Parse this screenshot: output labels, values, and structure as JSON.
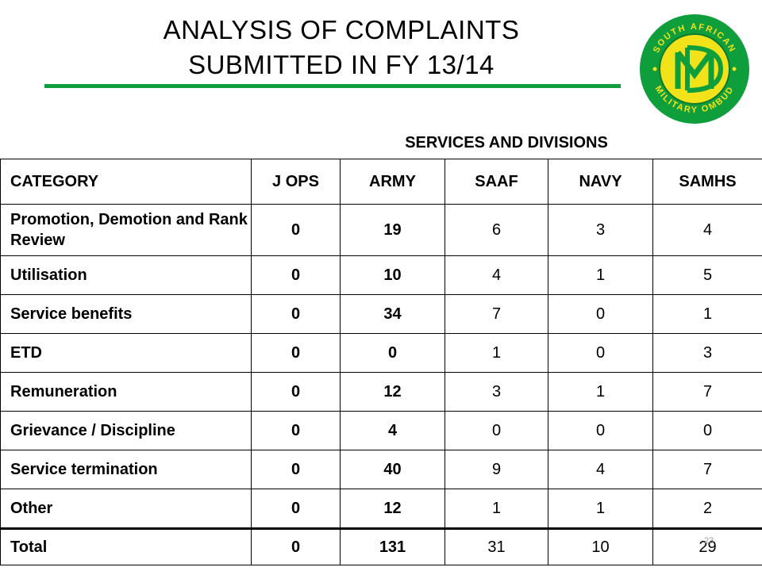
{
  "slide": {
    "title_line1": "ANALYSIS OF COMPLAINTS",
    "title_line2": "SUBMITTED IN FY 13/14",
    "page_number": "23"
  },
  "logo": {
    "top_text": "SOUTH AFRICAN",
    "bottom_text": "MILITARY OMBUD",
    "icon": "military-ombud-emblem",
    "colors": {
      "ring": "#0f9e3c",
      "inner": "#f2e21a",
      "letters": "#0f9e3c"
    }
  },
  "table": {
    "group_header": "SERVICES AND DIVISIONS",
    "columns": [
      "CATEGORY",
      "J OPS",
      "ARMY",
      "SAAF",
      "NAVY",
      "SAMHS"
    ],
    "rows": [
      {
        "category": "Promotion, Demotion and Rank Review",
        "values": [
          "0",
          "19",
          "6",
          "3",
          "4"
        ]
      },
      {
        "category": "Utilisation",
        "values": [
          "0",
          "10",
          "4",
          "1",
          "5"
        ]
      },
      {
        "category": "Service benefits",
        "values": [
          "0",
          "34",
          "7",
          "0",
          "1"
        ]
      },
      {
        "category": "ETD",
        "values": [
          "0",
          "0",
          "1",
          "0",
          "3"
        ]
      },
      {
        "category": "Remuneration",
        "values": [
          "0",
          "12",
          "3",
          "1",
          "7"
        ]
      },
      {
        "category": "Grievance / Discipline",
        "values": [
          "0",
          "4",
          "0",
          "0",
          "0"
        ]
      },
      {
        "category": "Service termination",
        "values": [
          "0",
          "40",
          "9",
          "4",
          "7"
        ]
      },
      {
        "category": "Other",
        "values": [
          "0",
          "12",
          "1",
          "1",
          "2"
        ]
      }
    ],
    "total": {
      "category": "Total",
      "values": [
        "0",
        "131",
        "31",
        "10",
        "29"
      ]
    }
  }
}
